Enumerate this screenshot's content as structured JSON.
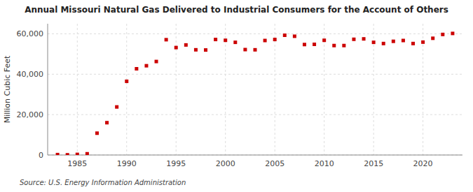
{
  "chart_data": {
    "type": "scatter",
    "title": "Annual Missouri Natural Gas Delivered to Industrial Consumers for the Account of Others",
    "ylabel": "Million Cubic Feet",
    "annotations": [
      "Source: U.S. Energy Information Administration"
    ],
    "x": [
      1983,
      1984,
      1985,
      1986,
      1987,
      1988,
      1989,
      1990,
      1991,
      1992,
      1993,
      1994,
      1995,
      1996,
      1997,
      1998,
      1999,
      2000,
      2001,
      2002,
      2003,
      2004,
      2005,
      2006,
      2007,
      2008,
      2009,
      2010,
      2011,
      2012,
      2013,
      2014,
      2015,
      2016,
      2017,
      2018,
      2019,
      2020,
      2021,
      2022,
      2023
    ],
    "values": [
      200,
      100,
      300,
      600,
      10800,
      16000,
      23800,
      36500,
      42700,
      44200,
      46300,
      57100,
      53200,
      54500,
      52100,
      52000,
      57200,
      56800,
      55800,
      52200,
      52100,
      56700,
      57200,
      59300,
      58800,
      54700,
      54800,
      56800,
      54200,
      54200,
      57300,
      57500,
      55800,
      55200,
      56300,
      56700,
      55200,
      55900,
      57800,
      59700,
      60200
    ],
    "color": "#cc0000",
    "marker": "square",
    "grid": true,
    "xlim": [
      1982,
      2024
    ],
    "ylim": [
      0,
      65000
    ],
    "xticks": [
      1985,
      1990,
      1995,
      2000,
      2005,
      2010,
      2015,
      2020
    ],
    "yticks": [
      0,
      {
        "value": 20000,
        "label": "20,000"
      },
      {
        "value": 40000,
        "label": "40,000"
      },
      {
        "value": 60000,
        "label": "60,000"
      }
    ]
  }
}
